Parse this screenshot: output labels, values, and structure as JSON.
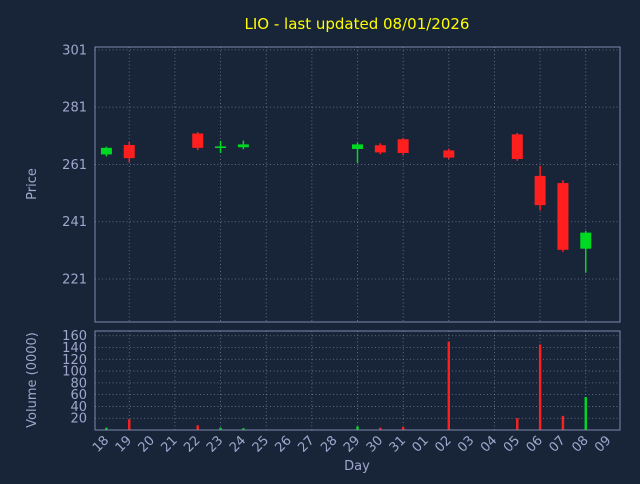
{
  "title": "LIO - last updated 08/01/2026",
  "colors": {
    "background": "#182538",
    "grid": "#c8d0e0",
    "axis": "#8794b8",
    "tick_text": "#a0a6cc",
    "title_text": "#ffff00",
    "up": "#00d923",
    "down": "#ff1f1f"
  },
  "chart_data": {
    "type": "candlestick",
    "title": "LIO - last updated 08/01/2026",
    "xlabel": "Day",
    "legend": "none",
    "price_panel": {
      "ylabel": "Price",
      "ticks": [
        221,
        241,
        261,
        281,
        301
      ],
      "ylim": [
        206,
        302
      ],
      "grid": true
    },
    "volume_panel": {
      "ylabel": "Volume (0000)",
      "ticks": [
        20,
        40,
        60,
        80,
        100,
        120,
        140,
        160
      ],
      "ylim": [
        0,
        168
      ],
      "grid": true
    },
    "days": [
      "18",
      "19",
      "20",
      "21",
      "22",
      "23",
      "24",
      "25",
      "26",
      "27",
      "28",
      "29",
      "30",
      "31",
      "01",
      "02",
      "03",
      "04",
      "05",
      "06",
      "07",
      "08",
      "09"
    ],
    "candles": [
      {
        "day": "18",
        "open": 264.5,
        "high": 267.2,
        "low": 263.8,
        "close": 266.8
      },
      {
        "day": "19",
        "open": 267.8,
        "high": 269.0,
        "low": 261.8,
        "close": 263.2
      },
      {
        "day": "22",
        "open": 271.8,
        "high": 272.3,
        "low": 266.0,
        "close": 266.8
      },
      {
        "day": "23",
        "open": 266.9,
        "high": 269.2,
        "low": 265.0,
        "close": 267.3
      },
      {
        "day": "24",
        "open": 267.0,
        "high": 269.3,
        "low": 266.3,
        "close": 268.0
      },
      {
        "day": "29",
        "open": 266.4,
        "high": 268.6,
        "low": 261.5,
        "close": 268.0
      },
      {
        "day": "30",
        "open": 267.7,
        "high": 268.4,
        "low": 264.6,
        "close": 265.2
      },
      {
        "day": "31",
        "open": 269.8,
        "high": 270.3,
        "low": 264.3,
        "close": 265.0
      },
      {
        "day": "02",
        "open": 265.9,
        "high": 266.5,
        "low": 262.9,
        "close": 263.4
      },
      {
        "day": "05",
        "open": 271.5,
        "high": 272.0,
        "low": 262.3,
        "close": 262.9
      },
      {
        "day": "06",
        "open": 257.0,
        "high": 260.5,
        "low": 245.0,
        "close": 246.8
      },
      {
        "day": "07",
        "open": 254.5,
        "high": 255.5,
        "low": 230.5,
        "close": 231.2
      },
      {
        "day": "08",
        "open": 231.6,
        "high": 237.8,
        "low": 223.2,
        "close": 237.2
      }
    ],
    "volumes": [
      {
        "day": "18",
        "value": 4
      },
      {
        "day": "19",
        "value": 18
      },
      {
        "day": "22",
        "value": 8
      },
      {
        "day": "23",
        "value": 4
      },
      {
        "day": "24",
        "value": 3
      },
      {
        "day": "29",
        "value": 6
      },
      {
        "day": "30",
        "value": 4
      },
      {
        "day": "31",
        "value": 5
      },
      {
        "day": "02",
        "value": 150
      },
      {
        "day": "05",
        "value": 20
      },
      {
        "day": "06",
        "value": 145
      },
      {
        "day": "07",
        "value": 24
      },
      {
        "day": "08",
        "value": 56
      }
    ],
    "grid_vertical_day_indices": [
      1,
      3,
      5,
      7,
      9,
      11,
      13,
      15,
      17,
      19,
      21
    ]
  }
}
